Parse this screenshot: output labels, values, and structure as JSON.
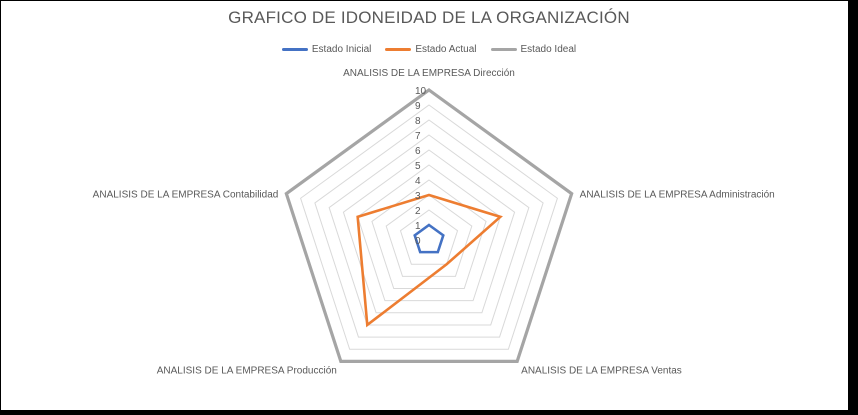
{
  "chart_data": {
    "type": "radar",
    "title": "GRAFICO DE IDONEIDAD DE LA ORGANIZACIÓN",
    "categories": [
      "ANALISIS DE LA EMPRESA Dirección",
      "ANALISIS DE LA EMPRESA Administración",
      "ANALISIS DE LA EMPRESA Ventas",
      "ANALISIS DE LA EMPRESA Producción",
      "ANALISIS DE LA EMPRESA Contabilidad"
    ],
    "ticks": [
      "0",
      "1",
      "2",
      "3",
      "4",
      "5",
      "6",
      "7",
      "8",
      "9",
      "10"
    ],
    "rlim": [
      0,
      10
    ],
    "legend_position": "top",
    "series": [
      {
        "name": "Estado Inicial",
        "color": "#4472C4",
        "values": [
          1,
          1,
          1,
          1,
          1
        ]
      },
      {
        "name": "Estado Actual",
        "color": "#ED7D31",
        "values": [
          3,
          5,
          2,
          7,
          5
        ]
      },
      {
        "name": "Estado Ideal",
        "color": "#A5A5A5",
        "values": [
          10,
          10,
          10,
          10,
          10
        ]
      }
    ],
    "gridline_color": "#D9D9D9"
  }
}
